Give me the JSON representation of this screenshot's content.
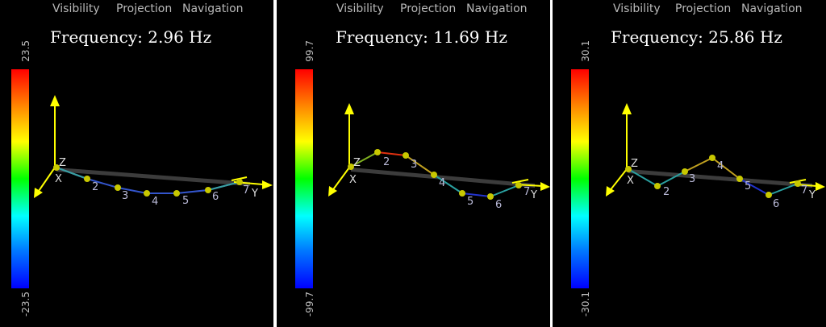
{
  "menu": {
    "visibility": "Visibility",
    "projection": "Projection",
    "navigation": "Navigation"
  },
  "axes": {
    "x": "X",
    "y": "Y",
    "z": "Z"
  },
  "colors": {
    "axis_arrow": "#ffff00",
    "beam": "#3c3c3c",
    "node": "#c8c800",
    "node_label": "#b8b8d6"
  },
  "panels": [
    {
      "frequency": "Frequency: 2.96 Hz",
      "scale_max": "23.5",
      "scale_min": "-23.5",
      "node_labels": [
        "2",
        "3",
        "4",
        "5",
        "6",
        "7"
      ]
    },
    {
      "frequency": "Frequency: 11.69 Hz",
      "scale_max": "99.7",
      "scale_min": "-99.7",
      "node_labels": [
        "2",
        "3",
        "4",
        "5",
        "6",
        "7"
      ]
    },
    {
      "frequency": "Frequency: 25.86 Hz",
      "scale_max": "30.1",
      "scale_min": "-30.1",
      "node_labels": [
        "2",
        "3",
        "4",
        "5",
        "6",
        "7"
      ]
    }
  ]
}
